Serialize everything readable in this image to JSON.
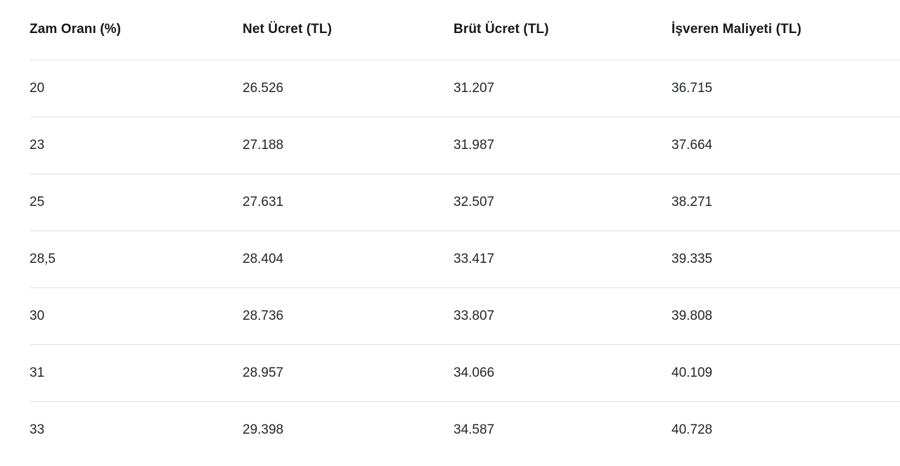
{
  "table": {
    "columns": [
      "Zam Oranı (%)",
      "Net Ücret (TL)",
      "Brüt Ücret (TL)",
      "İşveren Maliyeti (TL)"
    ],
    "rows": [
      [
        "20",
        "26.526",
        "31.207",
        "36.715"
      ],
      [
        "23",
        "27.188",
        "31.987",
        "37.664"
      ],
      [
        "25",
        "27.631",
        "32.507",
        "38.271"
      ],
      [
        "28,5",
        "28.404",
        "33.417",
        "39.335"
      ],
      [
        "30",
        "28.736",
        "33.807",
        "39.808"
      ],
      [
        "31",
        "28.957",
        "34.066",
        "40.109"
      ],
      [
        "33",
        "29.398",
        "34.587",
        "40.728"
      ]
    ]
  },
  "colors": {
    "background": "#ffffff",
    "divider": "#dbe1e7",
    "header_text": "#15181d",
    "cell_text": "#22262b"
  },
  "chart_data": {
    "type": "table",
    "title": "",
    "columns": [
      "Zam Oranı (%)",
      "Net Ücret (TL)",
      "Brüt Ücret (TL)",
      "İşveren Maliyeti (TL)"
    ],
    "rows": [
      {
        "zam_orani_pct": "20",
        "net_ucret_tl": "26.526",
        "brut_ucret_tl": "31.207",
        "isveren_maliyeti_tl": "36.715"
      },
      {
        "zam_orani_pct": "23",
        "net_ucret_tl": "27.188",
        "brut_ucret_tl": "31.987",
        "isveren_maliyeti_tl": "37.664"
      },
      {
        "zam_orani_pct": "25",
        "net_ucret_tl": "27.631",
        "brut_ucret_tl": "32.507",
        "isveren_maliyeti_tl": "38.271"
      },
      {
        "zam_orani_pct": "28,5",
        "net_ucret_tl": "28.404",
        "brut_ucret_tl": "33.417",
        "isveren_maliyeti_tl": "39.335"
      },
      {
        "zam_orani_pct": "30",
        "net_ucret_tl": "28.736",
        "brut_ucret_tl": "33.807",
        "isveren_maliyeti_tl": "39.808"
      },
      {
        "zam_orani_pct": "31",
        "net_ucret_tl": "28.957",
        "brut_ucret_tl": "34.066",
        "isveren_maliyeti_tl": "40.109"
      },
      {
        "zam_orani_pct": "33",
        "net_ucret_tl": "29.398",
        "brut_ucret_tl": "34.587",
        "isveren_maliyeti_tl": "40.728"
      }
    ]
  }
}
